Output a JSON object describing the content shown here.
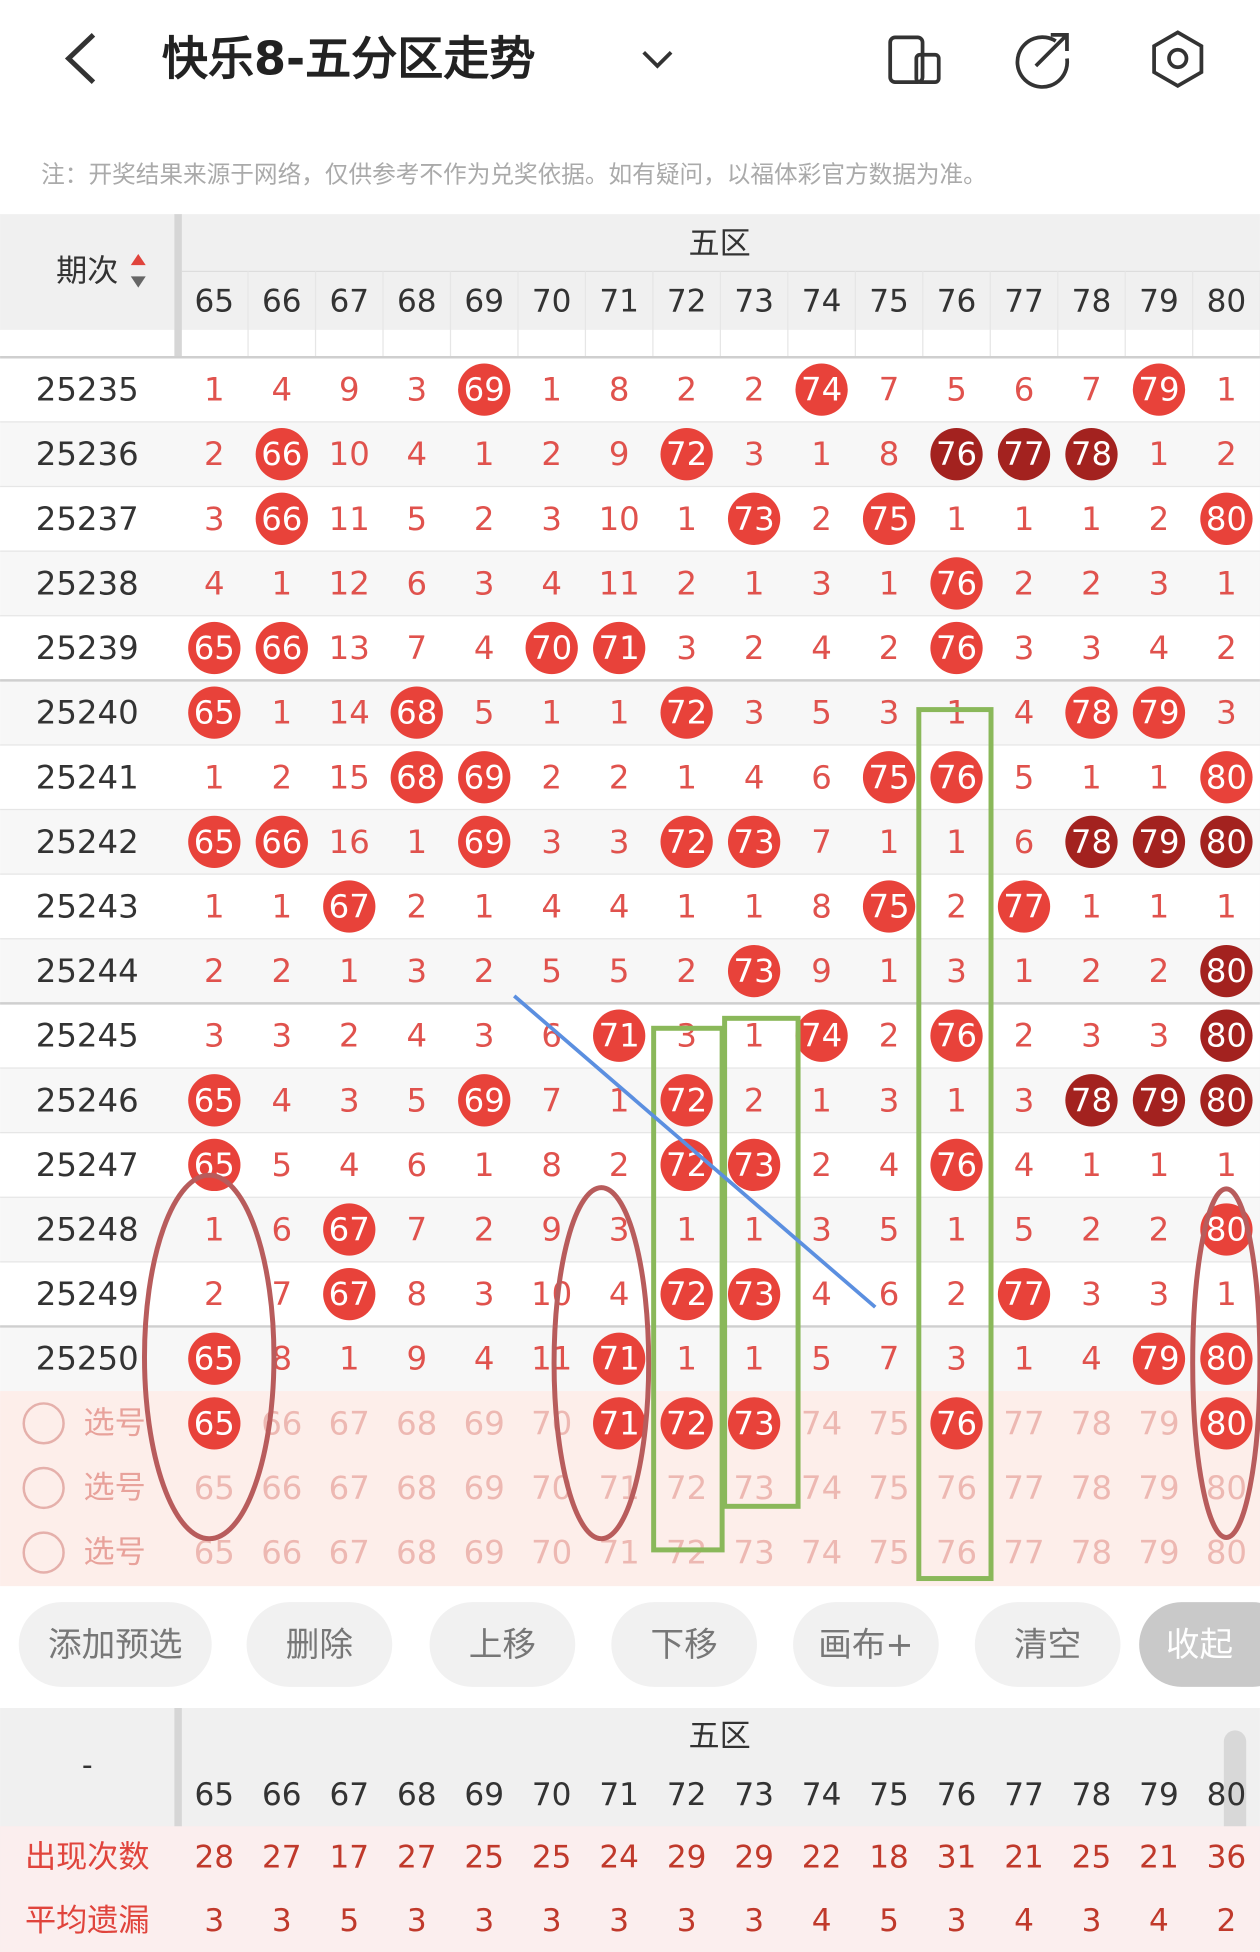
{
  "header": {
    "title": "快乐8-五分区走势"
  },
  "notice": "注：开奖结果来源于网络，仅供参考不作为兑奖依据。如有疑问，以福体彩官方数据为准。",
  "table": {
    "period_header": "期次",
    "zone": "五区",
    "columns": [
      "65",
      "66",
      "67",
      "68",
      "69",
      "70",
      "71",
      "72",
      "73",
      "74",
      "75",
      "76",
      "77",
      "78",
      "79",
      "80"
    ],
    "rows": [
      {
        "period": "25235",
        "cells": [
          1,
          4,
          9,
          3,
          69,
          1,
          8,
          2,
          2,
          74,
          7,
          5,
          6,
          7,
          79,
          1
        ],
        "styles": [
          "miss",
          "miss",
          "miss",
          "miss",
          "hit",
          "miss",
          "miss",
          "miss",
          "miss",
          "hit",
          "miss",
          "miss",
          "miss",
          "miss",
          "hit",
          "miss"
        ]
      },
      {
        "period": "25236",
        "cells": [
          2,
          66,
          10,
          4,
          1,
          2,
          9,
          72,
          3,
          1,
          8,
          76,
          77,
          78,
          1,
          2
        ],
        "styles": [
          "miss",
          "hit",
          "miss",
          "miss",
          "miss",
          "miss",
          "miss",
          "hit",
          "miss",
          "miss",
          "miss",
          "repeat",
          "repeat",
          "repeat",
          "miss",
          "miss"
        ]
      },
      {
        "period": "25237",
        "cells": [
          3,
          66,
          11,
          5,
          2,
          3,
          10,
          1,
          73,
          2,
          75,
          1,
          1,
          1,
          2,
          80
        ],
        "styles": [
          "miss",
          "hit",
          "miss",
          "miss",
          "miss",
          "miss",
          "miss",
          "miss",
          "hit",
          "miss",
          "hit",
          "miss",
          "miss",
          "miss",
          "miss",
          "hit"
        ]
      },
      {
        "period": "25238",
        "cells": [
          4,
          1,
          12,
          6,
          3,
          4,
          11,
          2,
          1,
          3,
          1,
          76,
          2,
          2,
          3,
          1
        ],
        "styles": [
          "miss",
          "miss",
          "miss",
          "miss",
          "miss",
          "miss",
          "miss",
          "miss",
          "miss",
          "miss",
          "miss",
          "hit",
          "miss",
          "miss",
          "miss",
          "miss"
        ]
      },
      {
        "period": "25239",
        "cells": [
          65,
          66,
          13,
          7,
          4,
          70,
          71,
          3,
          2,
          4,
          2,
          76,
          3,
          3,
          4,
          2
        ],
        "styles": [
          "hit",
          "hit",
          "miss",
          "miss",
          "miss",
          "hit",
          "hit",
          "miss",
          "miss",
          "miss",
          "miss",
          "hit",
          "miss",
          "miss",
          "miss",
          "miss"
        ]
      },
      {
        "period": "25240",
        "cells": [
          65,
          1,
          14,
          68,
          5,
          1,
          1,
          72,
          3,
          5,
          3,
          1,
          4,
          78,
          79,
          3
        ],
        "styles": [
          "hit",
          "miss",
          "miss",
          "hit",
          "miss",
          "miss",
          "miss",
          "hit",
          "miss",
          "miss",
          "miss",
          "miss",
          "miss",
          "hit",
          "hit",
          "miss"
        ]
      },
      {
        "period": "25241",
        "cells": [
          1,
          2,
          15,
          68,
          69,
          2,
          2,
          1,
          4,
          6,
          75,
          76,
          5,
          1,
          1,
          80
        ],
        "styles": [
          "miss",
          "miss",
          "miss",
          "hit",
          "hit",
          "miss",
          "miss",
          "miss",
          "miss",
          "miss",
          "hit",
          "hit",
          "miss",
          "miss",
          "miss",
          "hit"
        ]
      },
      {
        "period": "25242",
        "cells": [
          65,
          66,
          16,
          1,
          69,
          3,
          3,
          72,
          73,
          7,
          1,
          1,
          6,
          78,
          79,
          80
        ],
        "styles": [
          "hit",
          "hit",
          "miss",
          "miss",
          "hit",
          "miss",
          "miss",
          "hit",
          "hit",
          "miss",
          "miss",
          "miss",
          "miss",
          "repeat",
          "repeat",
          "repeat"
        ]
      },
      {
        "period": "25243",
        "cells": [
          1,
          1,
          67,
          2,
          1,
          4,
          4,
          1,
          1,
          8,
          75,
          2,
          77,
          1,
          1,
          1
        ],
        "styles": [
          "miss",
          "miss",
          "hit",
          "miss",
          "miss",
          "miss",
          "miss",
          "miss",
          "miss",
          "miss",
          "hit",
          "miss",
          "hit",
          "miss",
          "miss",
          "miss"
        ]
      },
      {
        "period": "25244",
        "cells": [
          2,
          2,
          1,
          3,
          2,
          5,
          5,
          2,
          73,
          9,
          1,
          3,
          1,
          2,
          2,
          80
        ],
        "styles": [
          "miss",
          "miss",
          "miss",
          "miss",
          "miss",
          "miss",
          "miss",
          "miss",
          "hit",
          "miss",
          "miss",
          "miss",
          "miss",
          "miss",
          "miss",
          "repeat"
        ]
      },
      {
        "period": "25245",
        "cells": [
          3,
          3,
          2,
          4,
          3,
          6,
          71,
          3,
          1,
          74,
          2,
          76,
          2,
          3,
          3,
          80
        ],
        "styles": [
          "miss",
          "miss",
          "miss",
          "miss",
          "miss",
          "miss",
          "hit",
          "miss",
          "miss",
          "hit",
          "miss",
          "hit",
          "miss",
          "miss",
          "miss",
          "repeat"
        ]
      },
      {
        "period": "25246",
        "cells": [
          65,
          4,
          3,
          5,
          69,
          7,
          1,
          72,
          2,
          1,
          3,
          1,
          3,
          78,
          79,
          80
        ],
        "styles": [
          "hit",
          "miss",
          "miss",
          "miss",
          "hit",
          "miss",
          "miss",
          "hit",
          "miss",
          "miss",
          "miss",
          "miss",
          "miss",
          "repeat",
          "repeat",
          "repeat"
        ]
      },
      {
        "period": "25247",
        "cells": [
          65,
          5,
          4,
          6,
          1,
          8,
          2,
          72,
          73,
          2,
          4,
          76,
          4,
          1,
          1,
          1
        ],
        "styles": [
          "hit",
          "miss",
          "miss",
          "miss",
          "miss",
          "miss",
          "miss",
          "hit",
          "hit",
          "miss",
          "miss",
          "hit",
          "miss",
          "miss",
          "miss",
          "miss"
        ]
      },
      {
        "period": "25248",
        "cells": [
          1,
          6,
          67,
          7,
          2,
          9,
          3,
          1,
          1,
          3,
          5,
          1,
          5,
          2,
          2,
          80
        ],
        "styles": [
          "miss",
          "miss",
          "hit",
          "miss",
          "miss",
          "miss",
          "miss",
          "miss",
          "miss",
          "miss",
          "miss",
          "miss",
          "miss",
          "miss",
          "miss",
          "hit"
        ]
      },
      {
        "period": "25249",
        "cells": [
          2,
          7,
          67,
          8,
          3,
          10,
          4,
          72,
          73,
          4,
          6,
          2,
          77,
          3,
          3,
          1
        ],
        "styles": [
          "miss",
          "miss",
          "hit",
          "miss",
          "miss",
          "miss",
          "miss",
          "hit",
          "hit",
          "miss",
          "miss",
          "miss",
          "hit",
          "miss",
          "miss",
          "miss"
        ]
      },
      {
        "period": "25250",
        "cells": [
          65,
          8,
          1,
          9,
          4,
          11,
          71,
          1,
          1,
          5,
          7,
          3,
          1,
          4,
          79,
          80
        ],
        "styles": [
          "hit",
          "miss",
          "miss",
          "miss",
          "miss",
          "miss",
          "hit",
          "miss",
          "miss",
          "miss",
          "miss",
          "miss",
          "miss",
          "miss",
          "hit",
          "hit"
        ]
      }
    ],
    "picks": [
      {
        "label": "选号",
        "selected": [
          "65",
          "71",
          "72",
          "73",
          "76",
          "80"
        ]
      },
      {
        "label": "选号",
        "selected": []
      },
      {
        "label": "选号",
        "selected": []
      }
    ]
  },
  "buttons": [
    "添加预选",
    "删除",
    "上移",
    "下移",
    "画布+",
    "清空",
    "收起"
  ],
  "stats": {
    "corner": "-",
    "zone": "五区",
    "rows": [
      {
        "label": "出现次数",
        "values": [
          28,
          27,
          17,
          27,
          25,
          25,
          24,
          29,
          29,
          22,
          18,
          31,
          21,
          25,
          21,
          36
        ]
      },
      {
        "label": "平均遗漏",
        "values": [
          3,
          3,
          5,
          3,
          3,
          3,
          3,
          3,
          3,
          4,
          5,
          3,
          4,
          3,
          4,
          2
        ]
      }
    ]
  }
}
